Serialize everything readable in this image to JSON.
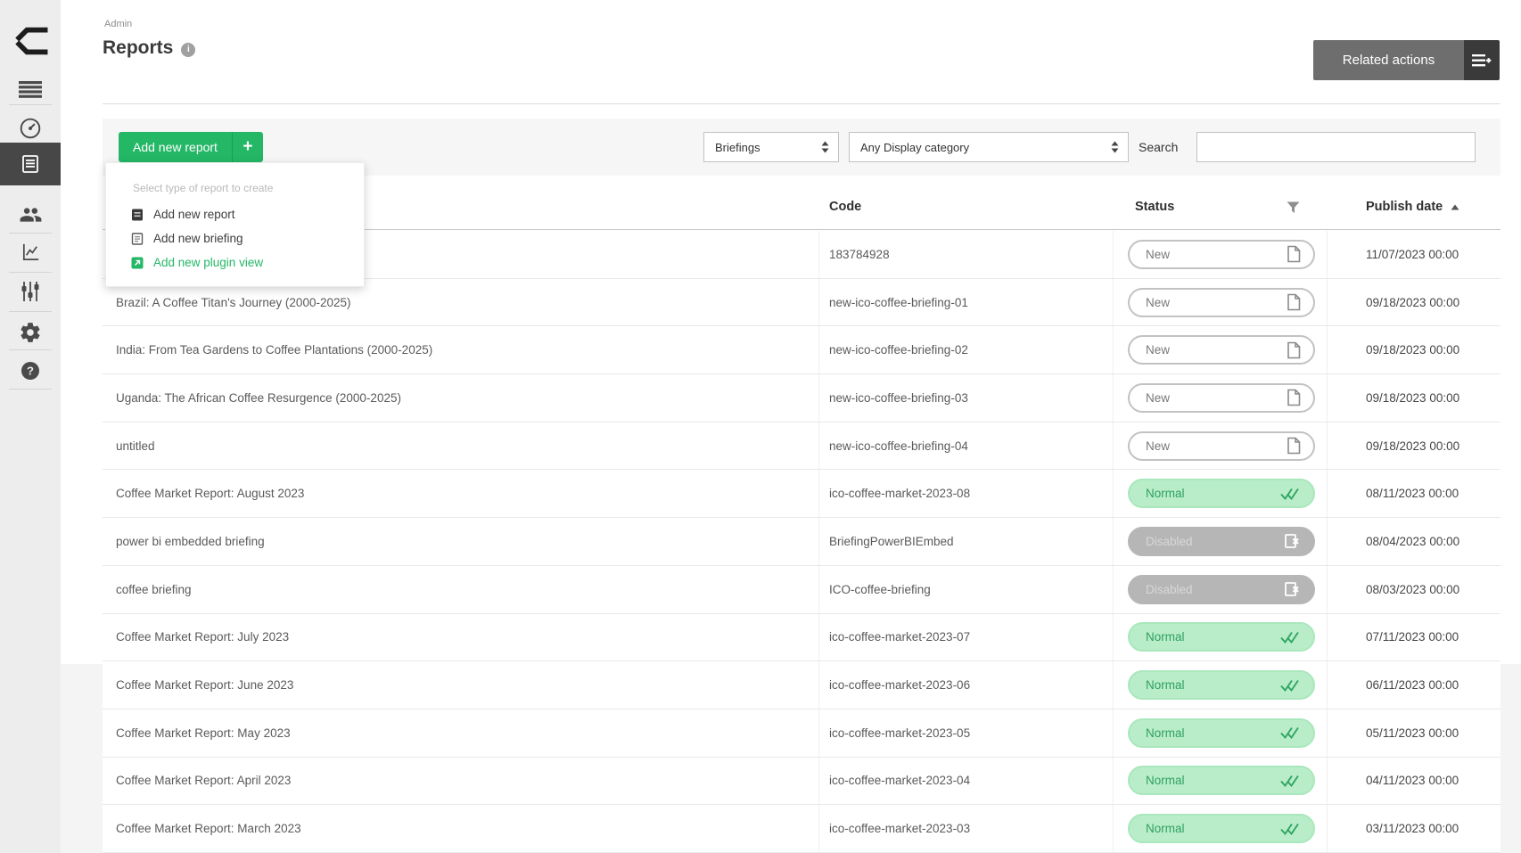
{
  "colors": {
    "accent_green": "#23b766",
    "sidebar_bg": "#ededed",
    "sidebar_active_bg": "#474747",
    "related_actions_bg": "#6e6e6e",
    "filter_band_bg": "#f6f6f6",
    "status_new_border": "#c2c2c2",
    "status_normal_bg": "#b9edc9",
    "status_normal_text": "#2fa061",
    "status_disabled_bg": "#b6b6b6"
  },
  "sidebar": {
    "items": [
      {
        "name": "logo"
      },
      {
        "name": "menu"
      },
      {
        "name": "dashboard"
      },
      {
        "name": "reports",
        "active": true
      },
      {
        "name": "users"
      },
      {
        "name": "analytics"
      },
      {
        "name": "controls"
      },
      {
        "name": "settings"
      },
      {
        "name": "help"
      }
    ]
  },
  "header": {
    "breadcrumb": "Admin",
    "title": "Reports",
    "related_actions_label": "Related actions"
  },
  "toolbar": {
    "add_button_label": "Add new report",
    "add_button_plus": "+",
    "type_filter_value": "Briefings",
    "category_filter_value": "Any Display category",
    "search_label": "Search",
    "search_value": ""
  },
  "dropdown": {
    "title": "Select type of report to create",
    "items": [
      {
        "label": "Add new report",
        "icon": "report-filled-icon",
        "highlight": false
      },
      {
        "label": "Add new briefing",
        "icon": "briefing-outline-icon",
        "highlight": false
      },
      {
        "label": "Add new plugin view",
        "icon": "plugin-view-icon",
        "highlight": true
      }
    ]
  },
  "table": {
    "headers": {
      "code": "Code",
      "status": "Status",
      "publish_date": "Publish date",
      "sort_direction": "asc"
    },
    "rows": [
      {
        "name": "",
        "code": "183784928",
        "status": "new",
        "status_label": "New",
        "publish_date": "11/07/2023 00:00"
      },
      {
        "name": "Brazil: A Coffee Titan's Journey (2000-2025)",
        "code": "new-ico-coffee-briefing-01",
        "status": "new",
        "status_label": "New",
        "publish_date": "09/18/2023 00:00"
      },
      {
        "name": "India: From Tea Gardens to Coffee Plantations (2000-2025)",
        "code": "new-ico-coffee-briefing-02",
        "status": "new",
        "status_label": "New",
        "publish_date": "09/18/2023 00:00"
      },
      {
        "name": "Uganda: The African Coffee Resurgence (2000-2025)",
        "code": "new-ico-coffee-briefing-03",
        "status": "new",
        "status_label": "New",
        "publish_date": "09/18/2023 00:00"
      },
      {
        "name": "untitled",
        "code": "new-ico-coffee-briefing-04",
        "status": "new",
        "status_label": "New",
        "publish_date": "09/18/2023 00:00"
      },
      {
        "name": "Coffee Market Report: August 2023",
        "code": "ico-coffee-market-2023-08",
        "status": "normal",
        "status_label": "Normal",
        "publish_date": "08/11/2023 00:00"
      },
      {
        "name": "power bi embedded briefing",
        "code": "BriefingPowerBIEmbed",
        "status": "disabled",
        "status_label": "Disabled",
        "publish_date": "08/04/2023 00:00"
      },
      {
        "name": "coffee briefing",
        "code": "ICO-coffee-briefing",
        "status": "disabled",
        "status_label": "Disabled",
        "publish_date": "08/03/2023 00:00"
      },
      {
        "name": "Coffee Market Report: July 2023",
        "code": "ico-coffee-market-2023-07",
        "status": "normal",
        "status_label": "Normal",
        "publish_date": "07/11/2023 00:00"
      },
      {
        "name": "Coffee Market Report: June 2023",
        "code": "ico-coffee-market-2023-06",
        "status": "normal",
        "status_label": "Normal",
        "publish_date": "06/11/2023 00:00"
      },
      {
        "name": "Coffee Market Report: May 2023",
        "code": "ico-coffee-market-2023-05",
        "status": "normal",
        "status_label": "Normal",
        "publish_date": "05/11/2023 00:00"
      },
      {
        "name": "Coffee Market Report: April 2023",
        "code": "ico-coffee-market-2023-04",
        "status": "normal",
        "status_label": "Normal",
        "publish_date": "04/11/2023 00:00"
      },
      {
        "name": "Coffee Market Report: March 2023",
        "code": "ico-coffee-market-2023-03",
        "status": "normal",
        "status_label": "Normal",
        "publish_date": "03/11/2023 00:00"
      }
    ]
  }
}
